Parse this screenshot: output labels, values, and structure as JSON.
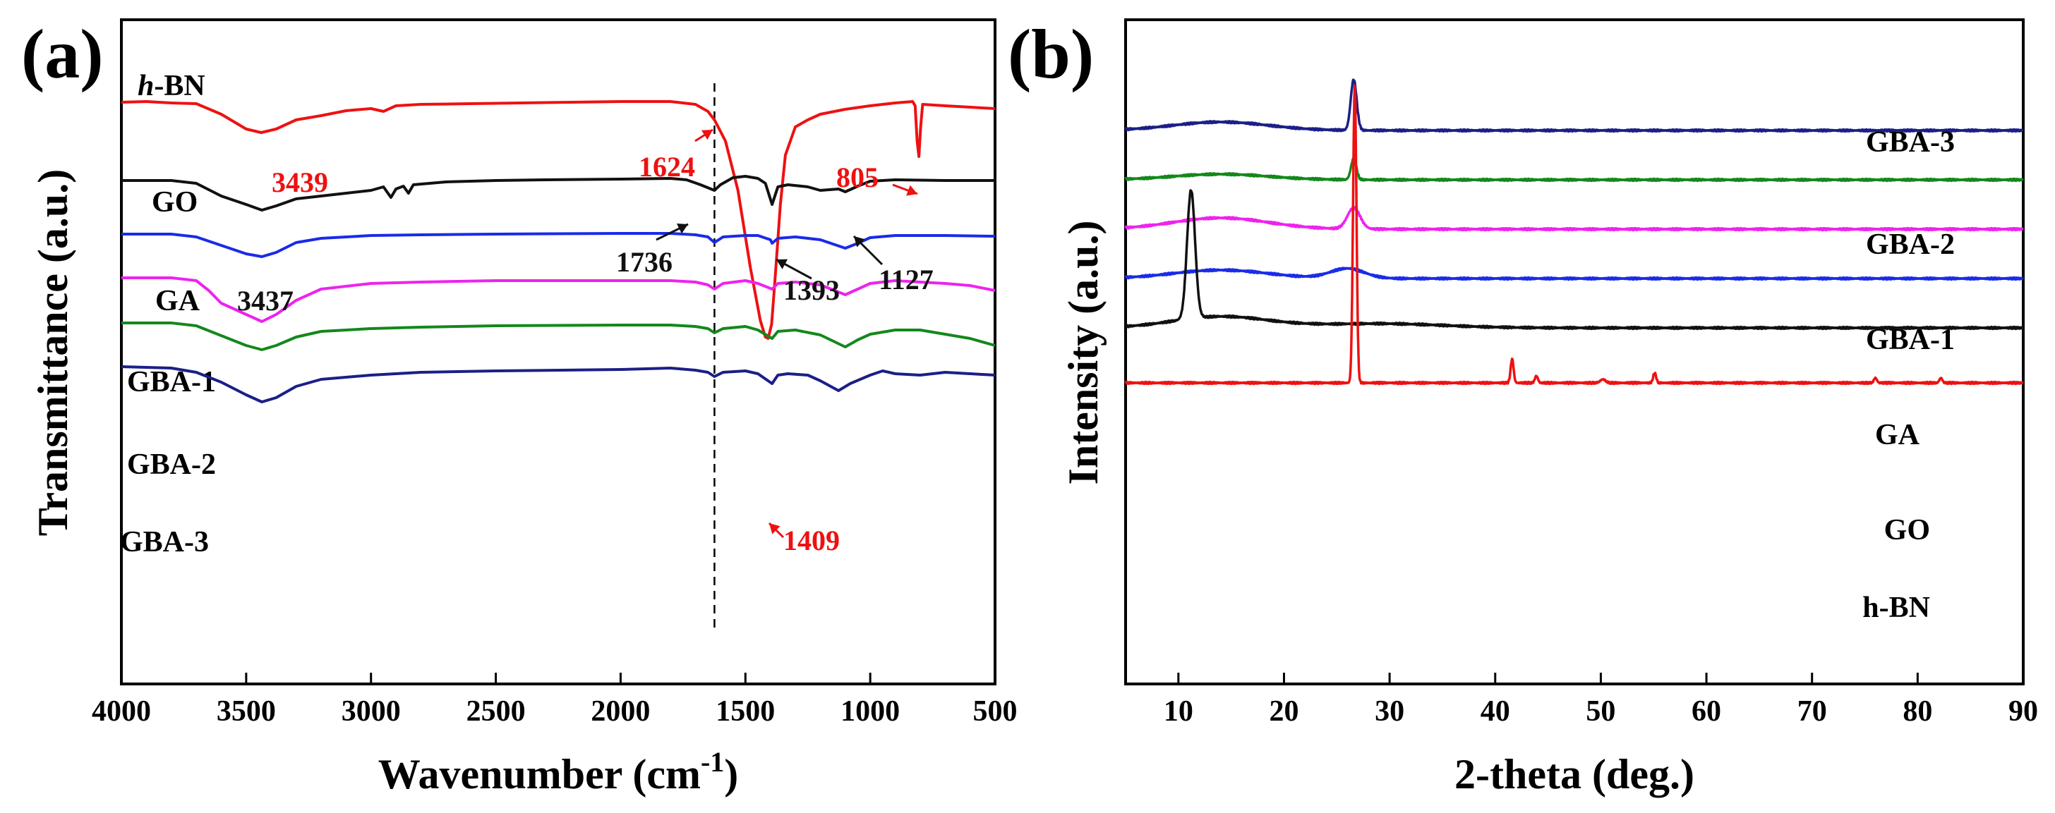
{
  "chart_data": [
    {
      "panel": "(a)",
      "type": "line",
      "title": "",
      "xlabel": "Wavenumber (cm",
      "xlabel_sup": "-1",
      "xlabel_end": ")",
      "ylabel": "Transmittance (a.u.)",
      "xlim": [
        4000,
        500
      ],
      "xticks": [
        4000,
        3500,
        3000,
        2500,
        2000,
        1500,
        1000,
        500
      ],
      "reference_line_x": 1624,
      "series": [
        {
          "name": "h-BN",
          "label_prefix": "h",
          "label_rest": "-BN",
          "color": "#ee1111",
          "points": [
            [
              4000,
              5
            ],
            [
              3900,
              4
            ],
            [
              3800,
              6
            ],
            [
              3700,
              7
            ],
            [
              3600,
              22
            ],
            [
              3500,
              43
            ],
            [
              3440,
              48
            ],
            [
              3380,
              43
            ],
            [
              3300,
              30
            ],
            [
              3200,
              24
            ],
            [
              3100,
              17
            ],
            [
              3000,
              14
            ],
            [
              2950,
              18
            ],
            [
              2900,
              10
            ],
            [
              2800,
              8
            ],
            [
              2600,
              7
            ],
            [
              2400,
              6
            ],
            [
              2200,
              5
            ],
            [
              2000,
              4
            ],
            [
              1800,
              4
            ],
            [
              1700,
              8
            ],
            [
              1650,
              18
            ],
            [
              1624,
              30
            ],
            [
              1580,
              60
            ],
            [
              1530,
              130
            ],
            [
              1480,
              240
            ],
            [
              1440,
              315
            ],
            [
              1420,
              338
            ],
            [
              1409,
              340
            ],
            [
              1395,
              320
            ],
            [
              1380,
              250
            ],
            [
              1360,
              150
            ],
            [
              1340,
              80
            ],
            [
              1300,
              40
            ],
            [
              1250,
              30
            ],
            [
              1200,
              22
            ],
            [
              1100,
              15
            ],
            [
              1000,
              10
            ],
            [
              900,
              6
            ],
            [
              830,
              4
            ],
            [
              820,
              10
            ],
            [
              812,
              60
            ],
            [
              805,
              82
            ],
            [
              798,
              40
            ],
            [
              790,
              8
            ],
            [
              700,
              10
            ],
            [
              600,
              12
            ],
            [
              500,
              14
            ]
          ]
        },
        {
          "name": "GO",
          "color": "#111111",
          "points": [
            [
              4000,
              116
            ],
            [
              3800,
              116
            ],
            [
              3700,
              120
            ],
            [
              3600,
              138
            ],
            [
              3500,
              150
            ],
            [
              3437,
              158
            ],
            [
              3380,
              152
            ],
            [
              3300,
              142
            ],
            [
              3200,
              138
            ],
            [
              3100,
              134
            ],
            [
              3000,
              130
            ],
            [
              2950,
              125
            ],
            [
              2920,
              140
            ],
            [
              2900,
              128
            ],
            [
              2870,
              124
            ],
            [
              2850,
              134
            ],
            [
              2830,
              122
            ],
            [
              2700,
              118
            ],
            [
              2500,
              116
            ],
            [
              2300,
              115
            ],
            [
              2000,
              114
            ],
            [
              1800,
              113
            ],
            [
              1736,
              115
            ],
            [
              1680,
              122
            ],
            [
              1624,
              130
            ],
            [
              1600,
              122
            ],
            [
              1550,
              112
            ],
            [
              1500,
              110
            ],
            [
              1450,
              113
            ],
            [
              1420,
              120
            ],
            [
              1393,
              150
            ],
            [
              1370,
              125
            ],
            [
              1330,
              122
            ],
            [
              1250,
              125
            ],
            [
              1200,
              130
            ],
            [
              1127,
              128
            ],
            [
              1100,
              132
            ],
            [
              1050,
              124
            ],
            [
              1000,
              117
            ],
            [
              900,
              115
            ],
            [
              700,
              116
            ],
            [
              500,
              116
            ]
          ]
        },
        {
          "name": "GA",
          "color": "#1a2be8",
          "points": [
            [
              4000,
              192
            ],
            [
              3800,
              192
            ],
            [
              3700,
              196
            ],
            [
              3600,
              208
            ],
            [
              3500,
              220
            ],
            [
              3437,
              224
            ],
            [
              3380,
              218
            ],
            [
              3300,
              204
            ],
            [
              3200,
              198
            ],
            [
              3000,
              194
            ],
            [
              2800,
              193
            ],
            [
              2500,
              192
            ],
            [
              2000,
              191
            ],
            [
              1800,
              191
            ],
            [
              1700,
              193
            ],
            [
              1650,
              196
            ],
            [
              1624,
              204
            ],
            [
              1590,
              196
            ],
            [
              1500,
              194
            ],
            [
              1450,
              194
            ],
            [
              1400,
              200
            ],
            [
              1393,
              205
            ],
            [
              1370,
              198
            ],
            [
              1300,
              196
            ],
            [
              1200,
              200
            ],
            [
              1100,
              212
            ],
            [
              1050,
              205
            ],
            [
              1000,
              197
            ],
            [
              900,
              194
            ],
            [
              700,
              194
            ],
            [
              500,
              195
            ]
          ]
        },
        {
          "name": "GBA-1",
          "color": "#ee22ee",
          "points": [
            [
              4000,
              254
            ],
            [
              3800,
              254
            ],
            [
              3700,
              258
            ],
            [
              3650,
              272
            ],
            [
              3600,
              290
            ],
            [
              3500,
              306
            ],
            [
              3437,
              316
            ],
            [
              3380,
              306
            ],
            [
              3300,
              286
            ],
            [
              3200,
              270
            ],
            [
              3000,
              262
            ],
            [
              2800,
              260
            ],
            [
              2500,
              258
            ],
            [
              2000,
              258
            ],
            [
              1800,
              258
            ],
            [
              1700,
              260
            ],
            [
              1650,
              264
            ],
            [
              1624,
              270
            ],
            [
              1590,
              262
            ],
            [
              1500,
              258
            ],
            [
              1450,
              262
            ],
            [
              1393,
              270
            ],
            [
              1370,
              262
            ],
            [
              1300,
              260
            ],
            [
              1200,
              264
            ],
            [
              1100,
              278
            ],
            [
              1050,
              270
            ],
            [
              1000,
              262
            ],
            [
              900,
              258
            ],
            [
              700,
              262
            ],
            [
              600,
              265
            ],
            [
              500,
              272
            ]
          ]
        },
        {
          "name": "GBA-2",
          "color": "#13881b",
          "points": [
            [
              4000,
              318
            ],
            [
              3800,
              318
            ],
            [
              3700,
              322
            ],
            [
              3600,
              336
            ],
            [
              3500,
              350
            ],
            [
              3437,
              356
            ],
            [
              3380,
              350
            ],
            [
              3300,
              338
            ],
            [
              3200,
              330
            ],
            [
              3000,
              326
            ],
            [
              2800,
              324
            ],
            [
              2500,
              322
            ],
            [
              2000,
              321
            ],
            [
              1800,
              321
            ],
            [
              1700,
              323
            ],
            [
              1650,
              326
            ],
            [
              1624,
              332
            ],
            [
              1590,
              326
            ],
            [
              1500,
              323
            ],
            [
              1450,
              328
            ],
            [
              1393,
              340
            ],
            [
              1370,
              330
            ],
            [
              1300,
              328
            ],
            [
              1200,
              335
            ],
            [
              1100,
              352
            ],
            [
              1050,
              342
            ],
            [
              1000,
              334
            ],
            [
              900,
              328
            ],
            [
              800,
              328
            ],
            [
              700,
              334
            ],
            [
              600,
              340
            ],
            [
              500,
              350
            ]
          ]
        },
        {
          "name": "GBA-3",
          "color": "#1b1f86",
          "points": [
            [
              4000,
              380
            ],
            [
              3800,
              382
            ],
            [
              3700,
              388
            ],
            [
              3600,
              402
            ],
            [
              3500,
              420
            ],
            [
              3437,
              430
            ],
            [
              3380,
              424
            ],
            [
              3300,
              408
            ],
            [
              3200,
              398
            ],
            [
              3000,
              392
            ],
            [
              2800,
              388
            ],
            [
              2500,
              386
            ],
            [
              2000,
              384
            ],
            [
              1800,
              382
            ],
            [
              1700,
              385
            ],
            [
              1650,
              388
            ],
            [
              1624,
              394
            ],
            [
              1590,
              388
            ],
            [
              1500,
              386
            ],
            [
              1450,
              390
            ],
            [
              1393,
              404
            ],
            [
              1370,
              392
            ],
            [
              1330,
              390
            ],
            [
              1250,
              392
            ],
            [
              1200,
              400
            ],
            [
              1127,
              414
            ],
            [
              1080,
              404
            ],
            [
              1000,
              392
            ],
            [
              950,
              386
            ],
            [
              900,
              390
            ],
            [
              800,
              392
            ],
            [
              700,
              388
            ],
            [
              600,
              390
            ],
            [
              500,
              392
            ]
          ]
        }
      ],
      "annotations": [
        {
          "text": "3439",
          "color": "#ee1111"
        },
        {
          "text": "1624",
          "color": "#ee1111"
        },
        {
          "text": "805",
          "color": "#ee1111"
        },
        {
          "text": "1409",
          "color": "#ee1111"
        },
        {
          "text": "3437",
          "color": "#111111"
        },
        {
          "text": "1736",
          "color": "#111111"
        },
        {
          "text": "1393",
          "color": "#111111"
        },
        {
          "text": "1127",
          "color": "#111111"
        }
      ]
    },
    {
      "panel": "(b)",
      "type": "line",
      "title": "",
      "xlabel": "2-theta (deg.)",
      "ylabel": "Intensity (a.u.)",
      "xlim": [
        5,
        90
      ],
      "xticks": [
        10,
        20,
        30,
        40,
        50,
        60,
        70,
        80,
        90
      ],
      "series": [
        {
          "name": "GBA-3",
          "color": "#1b1f86",
          "baseline": 185,
          "peaks": [
            [
              14,
              12,
              4.5
            ],
            [
              26.6,
              72,
              0.28
            ]
          ]
        },
        {
          "name": "GBA-2",
          "color": "#13881b",
          "baseline": 255,
          "peaks": [
            [
              14,
              8,
              4.5
            ],
            [
              26.6,
              30,
              0.25
            ]
          ]
        },
        {
          "name": "GBA-1",
          "color": "#ee22ee",
          "baseline": 325,
          "peaks": [
            [
              14,
              16,
              4.5
            ],
            [
              26.6,
              30,
              0.6
            ]
          ]
        },
        {
          "name": "GA",
          "color": "#1a2be8",
          "baseline": 395,
          "peaks": [
            [
              14,
              12,
              4.5
            ],
            [
              26,
              14,
              1.6
            ]
          ]
        },
        {
          "name": "GO",
          "color": "#111111",
          "baseline": 465,
          "peaks": [
            [
              11.2,
              182,
              0.38
            ],
            [
              14,
              16,
              4.5
            ],
            [
              29,
              6,
              6
            ]
          ]
        },
        {
          "name": "h-BN",
          "color": "#ee1111",
          "baseline": 543,
          "peaks": [
            [
              26.7,
              420,
              0.16
            ],
            [
              41.6,
              34,
              0.14
            ],
            [
              43.9,
              10,
              0.14
            ],
            [
              50.2,
              5,
              0.25
            ],
            [
              55.1,
              14,
              0.14
            ],
            [
              76,
              7,
              0.14
            ],
            [
              82.2,
              7,
              0.14
            ]
          ]
        }
      ]
    }
  ]
}
